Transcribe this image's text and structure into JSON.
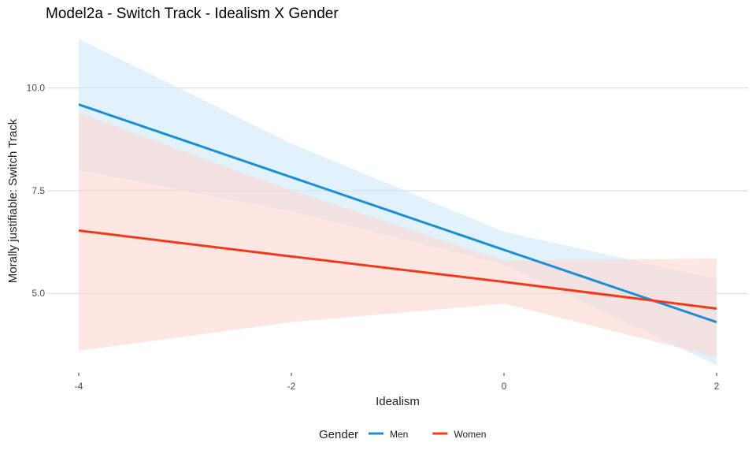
{
  "chart_data": {
    "type": "line",
    "title": "Model2a - Switch Track - Idealism X Gender",
    "xlabel": "Idealism",
    "ylabel": "Morally justifiable: Switch Track",
    "xlim": [
      -4,
      2
    ],
    "ylim": [
      3.2,
      11.3
    ],
    "x_ticks": [
      -4,
      -2,
      0,
      2
    ],
    "x_tick_labels": [
      "-4",
      "-2",
      "0",
      "2"
    ],
    "y_ticks": [
      5.0,
      7.5,
      10.0
    ],
    "y_tick_labels": [
      "5.0",
      "7.5",
      "10.0"
    ],
    "grid": "horizontal major lines",
    "legend_title": "Gender",
    "legend_position": "bottom",
    "series": [
      {
        "name": "Men",
        "color": "#1b8fd6",
        "ribbon_color": "#cdeaf7",
        "x": [
          -4,
          -2,
          0,
          2
        ],
        "y": [
          9.6,
          7.83,
          6.06,
          4.3
        ],
        "lower": [
          8.0,
          7.0,
          5.7,
          3.25
        ],
        "upper": [
          11.2,
          8.65,
          6.5,
          5.35
        ]
      },
      {
        "name": "Women",
        "color": "#f23a1a",
        "ribbon_color": "#fdd7d0",
        "x": [
          -4,
          -2,
          0,
          2
        ],
        "y": [
          6.53,
          5.9,
          5.28,
          4.63
        ],
        "lower": [
          3.6,
          4.3,
          4.75,
          3.45
        ],
        "upper": [
          9.4,
          7.5,
          5.8,
          5.85
        ]
      }
    ]
  }
}
